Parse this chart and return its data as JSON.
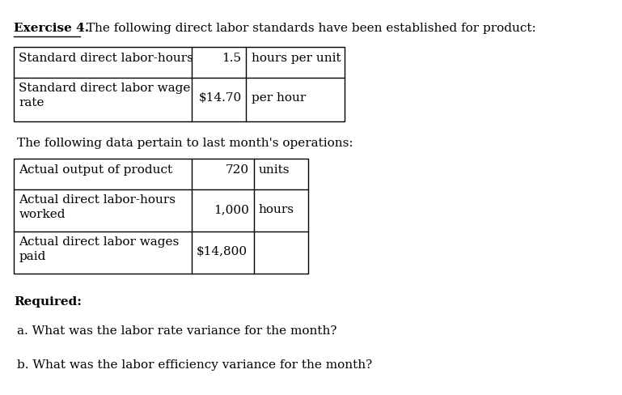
{
  "title_bold": "Exercise 4.",
  "title_normal": " The following direct labor standards have been established for product:",
  "table1": {
    "rows": [
      {
        "label": "Standard direct labor-hours",
        "value": "1.5",
        "unit": "hours per unit"
      },
      {
        "label": "Standard direct labor wage\nrate",
        "value": "$14.70",
        "unit": "per hour"
      }
    ]
  },
  "middle_text": "The following data pertain to last month's operations:",
  "table2": {
    "rows": [
      {
        "label": "Actual output of product",
        "value": "720",
        "unit": "units"
      },
      {
        "label": "Actual direct labor-hours\nworked",
        "value": "1,000",
        "unit": "hours"
      },
      {
        "label": "Actual direct labor wages\npaid",
        "value": "$14,800",
        "unit": ""
      }
    ]
  },
  "required_label": "Required:",
  "question_a": "a. What was the labor rate variance for the month?",
  "question_b": "b. What was the labor efficiency variance for the month?",
  "bg_color": "#ffffff",
  "text_color": "#000000",
  "font_size": 11
}
